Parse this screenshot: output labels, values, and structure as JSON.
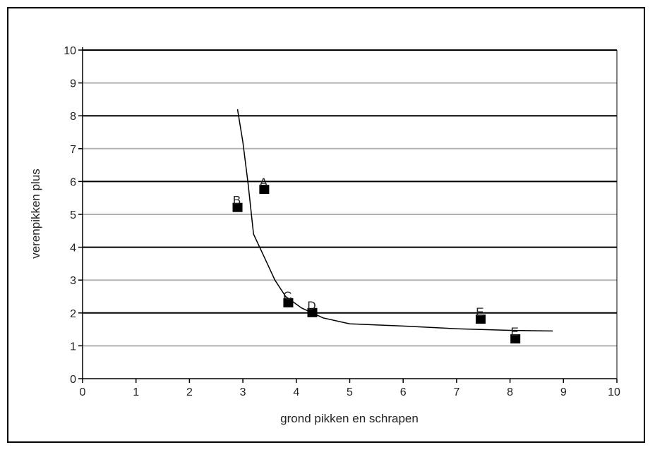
{
  "chart_data": {
    "type": "scatter",
    "title": "",
    "xlabel": "grond pikken en schrapen",
    "ylabel": "verenpikken plus",
    "xlim": [
      0,
      10
    ],
    "ylim": [
      0,
      10
    ],
    "x_ticks": [
      "0",
      "1",
      "2",
      "3",
      "4",
      "5",
      "6",
      "7",
      "8",
      "9",
      "10"
    ],
    "y_ticks": [
      "0",
      "1",
      "2",
      "3",
      "4",
      "5",
      "6",
      "7",
      "8",
      "9",
      "10"
    ],
    "grid": "horizontal",
    "points": [
      {
        "label": "A",
        "x": 3.4,
        "y": 5.75
      },
      {
        "label": "B",
        "x": 2.9,
        "y": 5.2
      },
      {
        "label": "C",
        "x": 3.85,
        "y": 2.3
      },
      {
        "label": "D",
        "x": 4.3,
        "y": 2.0
      },
      {
        "label": "E",
        "x": 7.45,
        "y": 1.8
      },
      {
        "label": "E",
        "x": 8.1,
        "y": 1.2
      }
    ],
    "trend_line": [
      {
        "x": 2.9,
        "y": 8.2
      },
      {
        "x": 3.0,
        "y": 7.2
      },
      {
        "x": 3.1,
        "y": 5.9
      },
      {
        "x": 3.2,
        "y": 4.4
      },
      {
        "x": 3.4,
        "y": 3.7
      },
      {
        "x": 3.6,
        "y": 3.0
      },
      {
        "x": 3.8,
        "y": 2.5
      },
      {
        "x": 4.1,
        "y": 2.15
      },
      {
        "x": 4.5,
        "y": 1.85
      },
      {
        "x": 5.0,
        "y": 1.67
      },
      {
        "x": 6.0,
        "y": 1.6
      },
      {
        "x": 7.0,
        "y": 1.52
      },
      {
        "x": 8.0,
        "y": 1.47
      },
      {
        "x": 8.8,
        "y": 1.45
      }
    ],
    "colors": {
      "marker": "#000000",
      "gridline_dark": "#000000",
      "gridline_light": "#b3b3b3",
      "line": "#000000"
    }
  }
}
